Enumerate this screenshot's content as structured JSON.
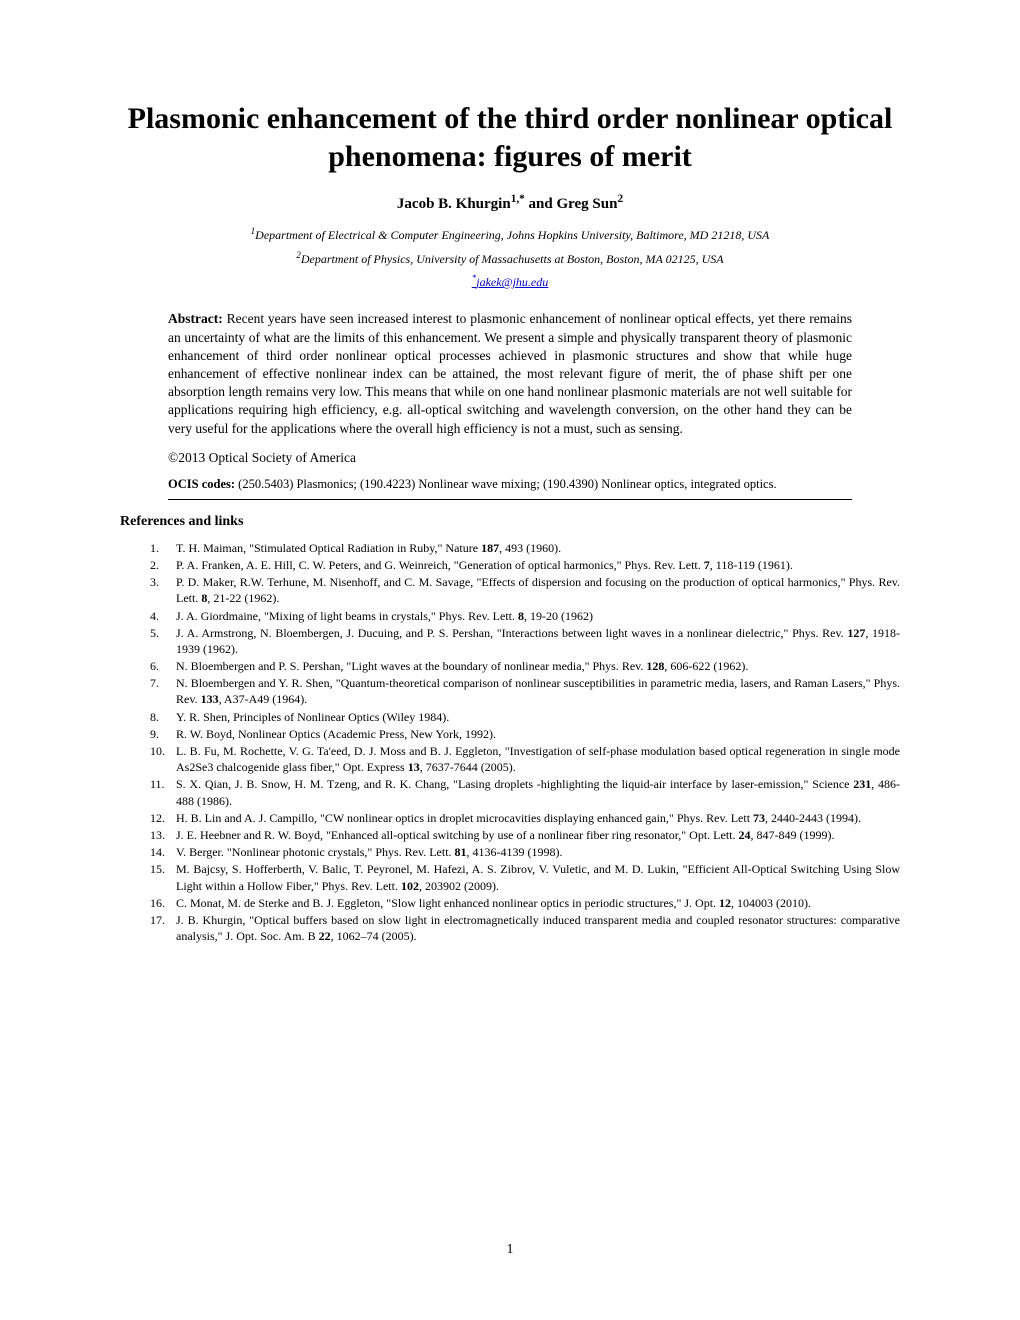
{
  "title": "Plasmonic enhancement of the third order nonlinear optical phenomena: figures of merit",
  "authors_html": "Jacob B. Khurgin<sup>1,*</sup> and Greg Sun<sup>2</sup>",
  "affiliations": [
    "<sup>1</sup>Department of Electrical & Computer Engineering, Johns Hopkins University, Baltimore, MD 21218, USA",
    "<sup>2</sup>Department of Physics, University of Massachusetts at Boston, Boston, MA 02125, USA"
  ],
  "email_html": "<sup>*</sup>jakek@jhu.edu",
  "abstract_label": "Abstract:",
  "abstract_text": " Recent years have seen increased interest to plasmonic enhancement of nonlinear optical effects, yet there remains an uncertainty of what are the limits of this enhancement. We present a simple and physically transparent theory of plasmonic enhancement of third order nonlinear optical processes achieved in plasmonic structures and show that while huge enhancement of effective nonlinear index can be attained, the most relevant figure of merit, the of phase shift per one absorption length remains very low. This means that while on one hand nonlinear plasmonic materials are not well suitable for applications requiring high efficiency, e.g. all-optical switching and wavelength conversion, on the other hand they can be very useful for the applications where the overall high efficiency is not a must, such as sensing.",
  "copyright": "©2013 Optical Society of America",
  "ocis_label": "OCIS codes:",
  "ocis_text": " (250.5403) Plasmonics; (190.4223) Nonlinear wave mixing; (190.4390) Nonlinear optics, integrated optics.",
  "references_heading": "References and links",
  "references": [
    "T. H. Maiman, \"Stimulated Optical Radiation in Ruby,\" Nature <b>187</b>, 493 (1960).",
    "P. A. Franken, A. E. Hill, C. W. Peters, and G. Weinreich, \"Generation of optical harmonics,\" Phys. Rev. Lett. <b>7</b>, 118-119 (1961).",
    "P. D. Maker, R.W. Terhune, M. Nisenhoff, and C. M. Savage, \"Effects of dispersion and focusing on the production of optical harmonics,\" Phys. Rev. Lett. <b>8</b>, 21-22 (1962).",
    "J. A. Giordmaine, \"Mixing of light beams in crystals,\" Phys. Rev. Lett. <b>8</b>, 19-20 (1962)",
    "J. A. Armstrong, N. Bloembergen, J. Ducuing, and P. S. Pershan, \"Interactions between light waves in a nonlinear dielectric,\" Phys. Rev. <b>127</b>, 1918-1939 (1962).",
    "N. Bloembergen and P. S. Pershan, \"Light waves at the boundary of nonlinear media,\" Phys. Rev. <b>128</b>, 606-622 (1962).",
    "N. Bloembergen and Y. R. Shen, \"Quantum-theoretical comparison of nonlinear susceptibilities in parametric media, lasers, and Raman Lasers,\" Phys. Rev. <b>133</b>, A37-A49 (1964).",
    "Y. R. Shen, Principles of Nonlinear Optics (Wiley 1984).",
    "R. W. Boyd, Nonlinear Optics (Academic Press, New York, 1992).",
    "L. B. Fu, M. Rochette, V. G. Ta'eed, D. J. Moss and B. J. Eggleton, \"Investigation of self-phase modulation based optical regeneration in single mode As2Se3 chalcogenide glass fiber,\" Opt. Express <b>13</b>, 7637-7644 (2005).",
    "S. X. Qian, J. B. Snow, H. M. Tzeng, and R. K. Chang, \"Lasing droplets -highlighting the liquid-air interface by laser-emission,\" Science <b>231</b>, 486-488 (1986).",
    "H. B. Lin and A. J. Campillo, \"CW nonlinear optics in droplet microcavities displaying enhanced gain,\" Phys. Rev. Lett <b>73</b>, 2440-2443 (1994).",
    "J. E. Heebner and R. W. Boyd, \"Enhanced all-optical switching by use of a nonlinear fiber ring resonator,\" Opt. Lett. <b>24</b>, 847-849 (1999).",
    "V. Berger. \"Nonlinear photonic crystals,\" Phys. Rev. Lett. <b>81</b>, 4136-4139 (1998).",
    "M. Bajcsy, S. Hofferberth, V. Balic, T. Peyronel, M. Hafezi, A. S. Zibrov, V. Vuletic, and M. D. Lukin, \"Efficient All-Optical Switching Using Slow Light within a Hollow Fiber,\" Phys. Rev. Lett. <b>102</b>, 203902 (2009).",
    "C. Monat, M. de Sterke and B. J. Eggleton, \"Slow light enhanced nonlinear optics in periodic structures,\" J. Opt. <b>12</b>, 104003 (2010).",
    "J. B. Khurgin, \"Optical buffers based on slow light in electromagnetically induced transparent media and coupled resonator structures: comparative analysis,\" J. Opt. Soc. Am. B <b>22</b>, 1062–74 (2005)."
  ],
  "page_number": "1"
}
